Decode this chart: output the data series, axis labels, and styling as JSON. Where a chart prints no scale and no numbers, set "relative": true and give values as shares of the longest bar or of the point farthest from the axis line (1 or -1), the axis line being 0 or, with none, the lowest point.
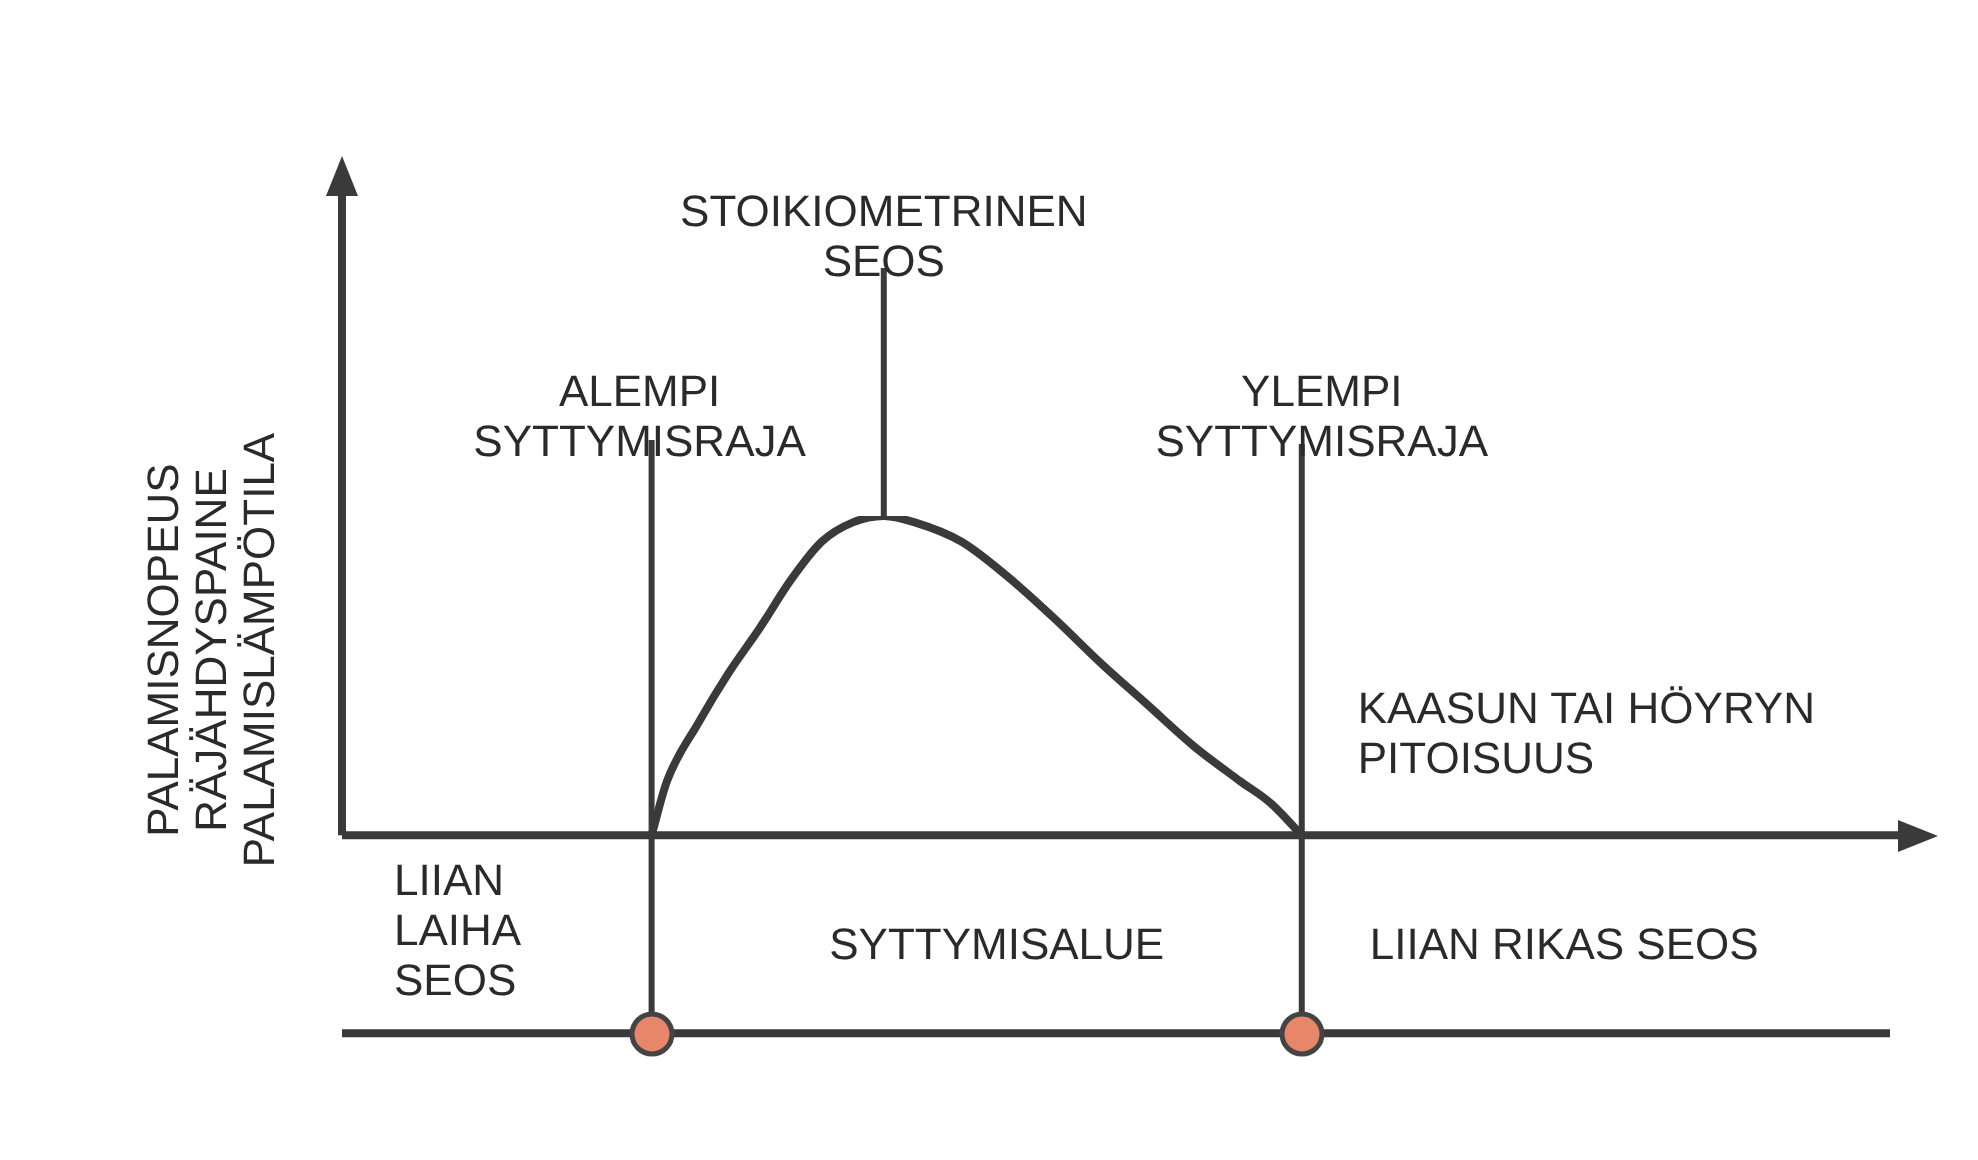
{
  "chart_data": {
    "type": "line",
    "relative": true,
    "legend": false,
    "marker": "none",
    "xlabel": "KAASUN TAI HÖYRYN\nPITOISUUS",
    "ylabel": "PALAMISNOPEUS\nRÄJÄHDYSPAINE\nPALAMISLÄMPÖTILA",
    "annotations": [
      "STOIKIOMETRINEN\nSEOS",
      "ALEMPI\nSYTTYMISRAJA",
      "YLEMPI\nSYTTYMISRAJA",
      "LIIAN\nLAIHA\nSEOS",
      "SYTTYMISALUE",
      "LIIAN RIKAS SEOS"
    ],
    "categories": [
      null,
      null,
      null,
      null,
      null,
      null,
      null,
      null,
      null,
      null,
      null,
      null,
      null,
      null,
      null,
      null,
      null,
      null,
      null,
      null,
      null,
      null,
      null,
      null,
      null,
      null,
      null,
      null,
      null,
      null,
      null,
      null,
      null,
      null,
      null,
      null,
      null,
      null,
      null,
      null,
      null,
      null,
      null,
      null,
      null,
      null,
      null,
      null,
      null,
      null,
      null,
      null,
      null,
      null,
      null,
      null,
      null,
      null,
      null,
      null,
      null,
      null,
      null,
      null,
      null,
      null,
      null,
      null,
      null,
      null,
      null,
      null,
      null,
      null,
      null,
      null,
      null,
      null,
      null,
      null,
      null,
      null,
      null,
      null,
      null,
      null,
      null,
      null,
      null,
      null,
      null,
      null,
      null,
      null,
      null,
      null,
      null,
      null,
      null,
      null,
      null
    ],
    "series": [
      {
        "color": "#3a3a3a",
        "values": [
          null,
          null,
          null,
          null,
          null,
          null,
          null,
          null,
          null,
          null,
          null,
          null,
          null,
          null,
          null,
          null,
          null,
          null,
          null,
          null,
          0,
          0.17,
          null,
          0.35,
          null,
          0.51,
          null,
          0.65,
          null,
          0.8,
          null,
          0.92,
          null,
          0.98,
          null,
          1,
          null,
          0.98,
          null,
          null,
          0.92,
          null,
          null,
          0.81,
          null,
          null,
          0.68,
          null,
          null,
          0.54,
          null,
          null,
          0.41,
          null,
          null,
          0.28,
          null,
          null,
          0.17,
          null,
          0.1,
          null,
          0,
          null,
          null,
          null,
          null,
          null,
          null,
          null,
          null,
          null,
          null,
          null,
          null,
          null,
          null,
          null,
          null,
          null,
          null,
          null,
          null,
          null,
          null,
          null,
          null,
          null,
          null,
          null,
          null,
          null,
          null,
          null,
          null,
          null,
          null,
          null,
          null,
          null,
          null
        ]
      }
    ]
  }
}
